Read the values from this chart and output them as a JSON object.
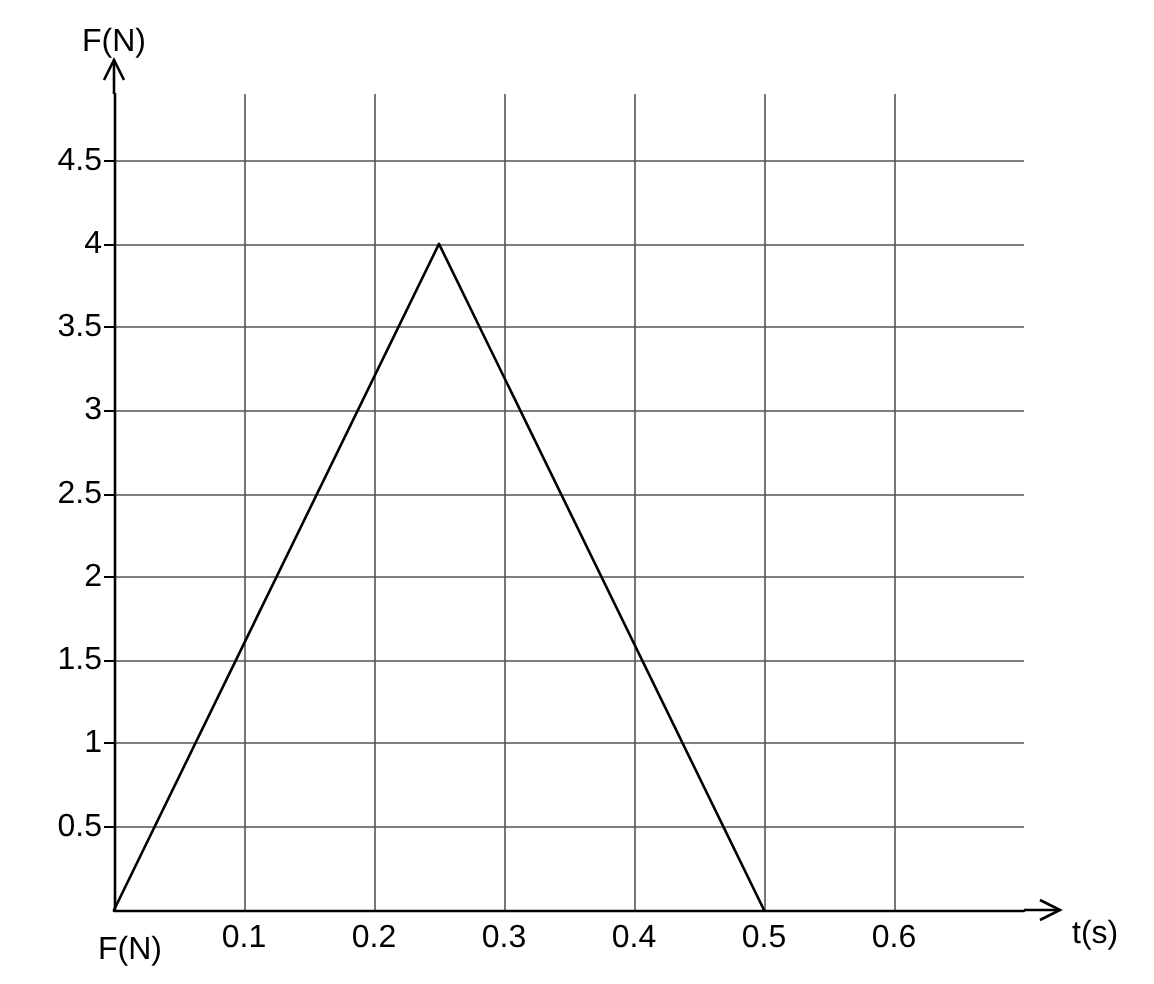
{
  "chart_data": {
    "type": "line",
    "xlabel": "t(s)",
    "ylabel": "F(N)",
    "x": [
      0,
      0.25,
      0.5
    ],
    "series": [
      {
        "color": "#000000",
        "values": [
          0,
          4,
          0
        ]
      }
    ],
    "xlim": [
      0,
      0.7
    ],
    "ylim": [
      0,
      4.9
    ],
    "xticks": [
      0.1,
      0.2,
      0.3,
      0.4,
      0.5,
      0.6
    ],
    "yticks": [
      0.5,
      1,
      1.5,
      2,
      2.5,
      3,
      3.5,
      4,
      4.5
    ],
    "annotations": [
      "F(N)"
    ],
    "grid": true,
    "marker": "none",
    "line_style": "solid"
  }
}
